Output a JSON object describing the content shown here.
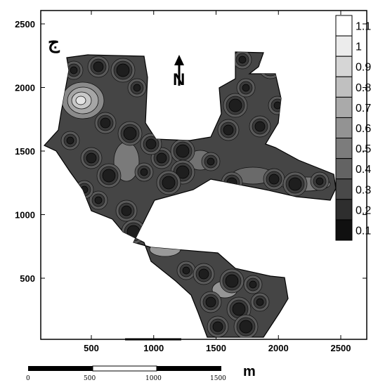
{
  "map": {
    "panel_label": "ج",
    "north_label": "N",
    "x_axis": {
      "ticks": [
        500,
        1000,
        1500,
        2000,
        2500
      ]
    },
    "y_axis": {
      "ticks": [
        500,
        1000,
        1500,
        2000,
        2500
      ]
    },
    "colors": {
      "background": "#ffffff",
      "frame": "#000000",
      "dark_fill": "#3c3c3c",
      "mid_fill": "#6e6e6e",
      "light_fill": "#a8a8a8",
      "contour": "#111111"
    }
  },
  "legend": {
    "levels": [
      {
        "label": "1.1",
        "color": "#ffffff"
      },
      {
        "label": "1",
        "color": "#ececec"
      },
      {
        "label": "0.9",
        "color": "#d6d6d6"
      },
      {
        "label": "0.8",
        "color": "#c0c0c0"
      },
      {
        "label": "0.7",
        "color": "#aaaaaa"
      },
      {
        "label": "0.6",
        "color": "#939393"
      },
      {
        "label": "0.5",
        "color": "#7c7c7c"
      },
      {
        "label": "0.4",
        "color": "#636363"
      },
      {
        "label": "0.3",
        "color": "#494949"
      },
      {
        "label": "0.2",
        "color": "#2e2e2e"
      },
      {
        "label": "0.1",
        "color": "#101010"
      }
    ]
  },
  "scale_bar": {
    "labels": [
      "0",
      "500",
      "1000",
      "1500"
    ],
    "unit": "m"
  }
}
